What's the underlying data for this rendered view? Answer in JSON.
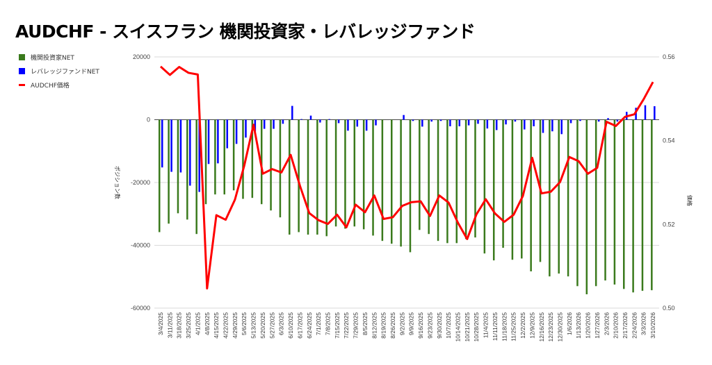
{
  "title": "AUDCHF - スイスフラン 機関投資家・レバレッジファンド",
  "chart_data": {
    "type": "bar+line",
    "title": "AUDCHF - スイスフラン 機関投資家・レバレッジファンド",
    "xlabel": "",
    "ylabel": "ポジション数",
    "y2label": "価格",
    "ylim": [
      -60000,
      20000
    ],
    "y2lim": [
      0.5,
      0.56
    ],
    "yticks": [
      "20000",
      "0",
      "-20000",
      "-40000",
      "-60000"
    ],
    "y2ticks": [
      "0.56",
      "0.54",
      "0.52",
      "0.50"
    ],
    "grid": true,
    "legend_position": "left",
    "categories": [
      "3/4/2025",
      "3/11/2025",
      "3/18/2025",
      "3/25/2025",
      "4/1/2025",
      "4/8/2025",
      "4/15/2025",
      "4/22/2025",
      "4/29/2025",
      "5/6/2025",
      "5/13/2025",
      "5/20/2025",
      "5/27/2025",
      "6/3/2025",
      "6/10/2025",
      "6/17/2025",
      "6/24/2025",
      "7/1/2025",
      "7/8/2025",
      "7/15/2025",
      "7/22/2025",
      "7/29/2025",
      "8/5/2025",
      "8/12/2025",
      "8/19/2025",
      "8/26/2025",
      "9/2/2025",
      "9/9/2025",
      "9/16/2025",
      "9/23/2025",
      "9/30/2025",
      "10/7/2025",
      "10/14/2025",
      "10/21/2025",
      "10/28/2025",
      "11/4/2025",
      "11/11/2025",
      "11/18/2025",
      "11/25/2025",
      "12/2/2025",
      "12/9/2025",
      "12/16/2025",
      "12/23/2025",
      "12/30/2025",
      "1/6/2026",
      "1/13/2026",
      "1/20/2026",
      "1/27/2026",
      "2/3/2026",
      "2/10/2026",
      "2/17/2026",
      "2/24/2026",
      "3/3/2026",
      "3/10/2026"
    ],
    "series": [
      {
        "name": "機関投資家NET",
        "type": "bar",
        "axis": "left",
        "color": "#3a7a1c",
        "values": [
          -35800,
          -33100,
          -29800,
          -31800,
          -36400,
          -26900,
          -23800,
          -23800,
          -22500,
          -25200,
          -24900,
          -26900,
          -28900,
          -31100,
          -36600,
          -35800,
          -36600,
          -36600,
          -37100,
          -34000,
          -34700,
          -34000,
          -34900,
          -36900,
          -38600,
          -39500,
          -40400,
          -42200,
          -35100,
          -36400,
          -38600,
          -39300,
          -39300,
          -38000,
          -37500,
          -42600,
          -44800,
          -40800,
          -44600,
          -44200,
          -48300,
          -45300,
          -49900,
          -49000,
          -49900,
          -53000,
          -55600,
          -53000,
          -51200,
          -52500,
          -53900,
          -55000,
          -54500,
          -54300
        ]
      },
      {
        "name": "レバレッジファンドNET",
        "type": "bar",
        "axis": "left",
        "color": "#0000ff",
        "values": [
          -15200,
          -16600,
          -16800,
          -21000,
          -23000,
          -14100,
          -13900,
          -9100,
          -7700,
          -5700,
          -3800,
          -2900,
          -2900,
          -1300,
          4400,
          200,
          1300,
          -900,
          200,
          -1100,
          -3500,
          -2200,
          -3500,
          -1800,
          0,
          0,
          1500,
          -400,
          -2200,
          -600,
          -400,
          -2100,
          -2100,
          -1800,
          -1300,
          -2800,
          -3300,
          -1500,
          -600,
          -3100,
          -2100,
          -4200,
          -3700,
          -4600,
          -1100,
          -400,
          0,
          -600,
          500,
          -600,
          2500,
          3800,
          4600,
          4300
        ]
      },
      {
        "name": "AUDCHF価格",
        "type": "line",
        "axis": "right",
        "color": "#ff0000",
        "values": [
          0.5577,
          0.5557,
          0.5576,
          0.5562,
          0.5558,
          0.5047,
          0.5222,
          0.5211,
          0.5259,
          0.534,
          0.5438,
          0.5321,
          0.5332,
          0.5324,
          0.5366,
          0.5292,
          0.5227,
          0.521,
          0.5201,
          0.5223,
          0.5193,
          0.5247,
          0.5229,
          0.5269,
          0.5213,
          0.5217,
          0.5244,
          0.5253,
          0.5255,
          0.522,
          0.5269,
          0.5252,
          0.5204,
          0.5165,
          0.5224,
          0.526,
          0.5226,
          0.5206,
          0.5223,
          0.5268,
          0.5359,
          0.5274,
          0.5278,
          0.5301,
          0.5361,
          0.5351,
          0.5321,
          0.5335,
          0.5445,
          0.5435,
          0.5457,
          0.5463,
          0.5499,
          0.554
        ]
      }
    ]
  }
}
